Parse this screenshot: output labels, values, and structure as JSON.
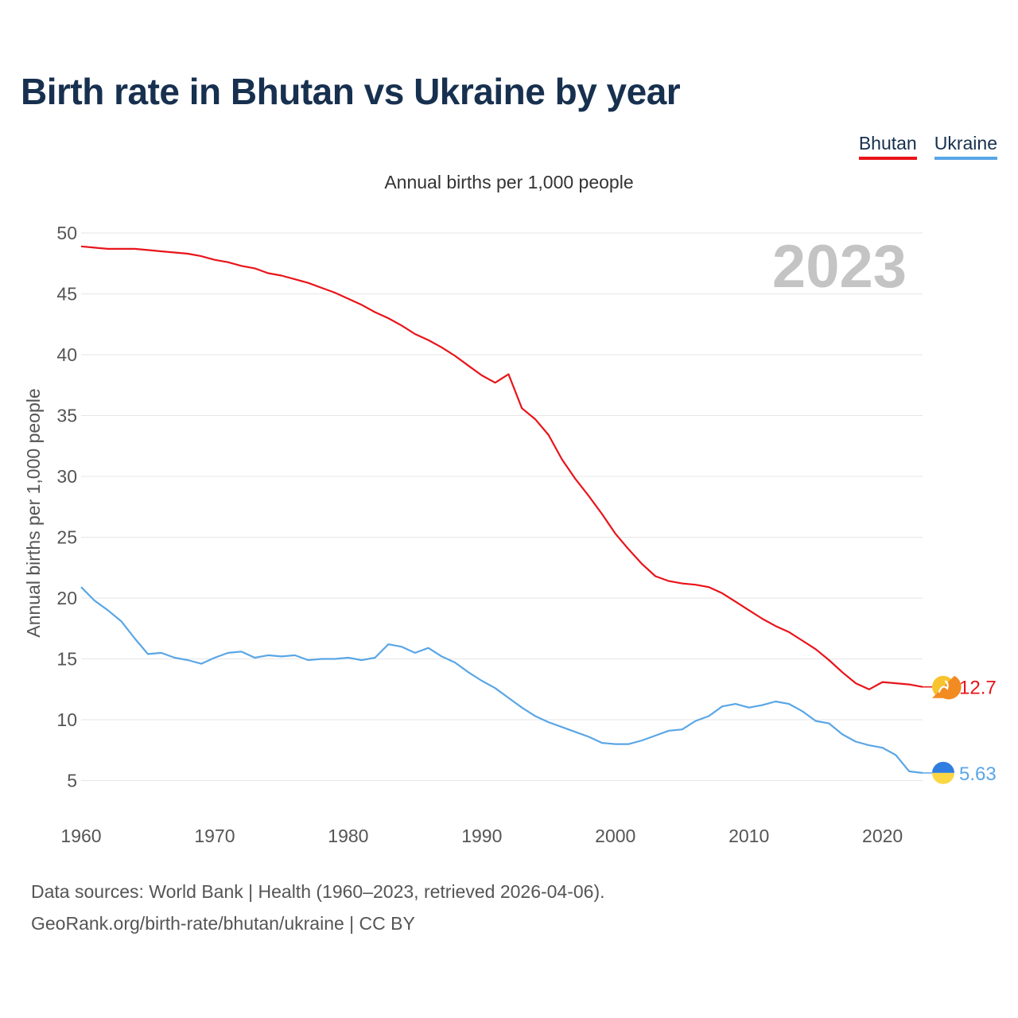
{
  "title": "Birth rate in Bhutan vs Ukraine by year",
  "legend": [
    {
      "label": "Bhutan",
      "color": "#e8141a"
    },
    {
      "label": "Ukraine",
      "color": "#5aa6e6"
    }
  ],
  "subtitle": "Annual births per 1,000 people",
  "year_label": "2023",
  "source": {
    "line1": "Data sources: World Bank | Health (1960–2023, retrieved 2026-04-06).",
    "line2": "GeoRank.org/birth-rate/bhutan/ukraine | CC BY"
  },
  "chart_data": {
    "type": "line",
    "title": "Birth rate in Bhutan vs Ukraine by year",
    "xlabel": "",
    "ylabel": "Annual births per 1,000 people",
    "xlim": [
      1960,
      2023
    ],
    "ylim": [
      0,
      50
    ],
    "xticks": [
      1960,
      1970,
      1980,
      1990,
      2000,
      2010,
      2020
    ],
    "yticks": [
      5,
      10,
      15,
      20,
      25,
      30,
      35,
      40,
      45,
      50
    ],
    "grid": true,
    "legend_position": "top-right",
    "x": [
      1960,
      1961,
      1962,
      1963,
      1964,
      1965,
      1966,
      1967,
      1968,
      1969,
      1970,
      1971,
      1972,
      1973,
      1974,
      1975,
      1976,
      1977,
      1978,
      1979,
      1980,
      1981,
      1982,
      1983,
      1984,
      1985,
      1986,
      1987,
      1988,
      1989,
      1990,
      1991,
      1992,
      1993,
      1994,
      1995,
      1996,
      1997,
      1998,
      1999,
      2000,
      2001,
      2002,
      2003,
      2004,
      2005,
      2006,
      2007,
      2008,
      2009,
      2010,
      2011,
      2012,
      2013,
      2014,
      2015,
      2016,
      2017,
      2018,
      2019,
      2020,
      2021,
      2022,
      2023
    ],
    "series": [
      {
        "name": "Bhutan",
        "color": "#e8141a",
        "end_label": "12.7",
        "values": [
          48.9,
          48.8,
          48.7,
          48.7,
          48.7,
          48.6,
          48.5,
          48.4,
          48.3,
          48.1,
          47.8,
          47.6,
          47.3,
          47.1,
          46.7,
          46.5,
          46.2,
          45.9,
          45.5,
          45.1,
          44.6,
          44.1,
          43.5,
          43.0,
          42.4,
          41.7,
          41.2,
          40.6,
          39.9,
          39.1,
          38.3,
          37.7,
          38.4,
          35.6,
          34.7,
          33.4,
          31.4,
          29.8,
          28.4,
          26.9,
          25.3,
          24.0,
          22.8,
          21.8,
          21.4,
          21.2,
          21.1,
          20.9,
          20.4,
          19.7,
          19.0,
          18.3,
          17.7,
          17.2,
          16.5,
          15.8,
          14.9,
          13.9,
          13.0,
          12.5,
          13.1,
          13.0,
          12.9,
          12.7
        ]
      },
      {
        "name": "Ukraine",
        "color": "#5aa6e6",
        "end_label": "5.63",
        "values": [
          20.9,
          19.8,
          19.0,
          18.1,
          16.7,
          15.4,
          15.5,
          15.1,
          14.9,
          14.6,
          15.1,
          15.5,
          15.6,
          15.1,
          15.3,
          15.2,
          15.3,
          14.9,
          15.0,
          15.0,
          15.1,
          14.9,
          15.1,
          16.2,
          16.0,
          15.5,
          15.9,
          15.2,
          14.7,
          13.9,
          13.2,
          12.6,
          11.8,
          11.0,
          10.3,
          9.8,
          9.4,
          9.0,
          8.6,
          8.1,
          8.0,
          8.0,
          8.3,
          8.7,
          9.1,
          9.2,
          9.9,
          10.3,
          11.1,
          11.3,
          11.0,
          11.2,
          11.5,
          11.3,
          10.7,
          9.9,
          9.7,
          8.8,
          8.2,
          7.9,
          7.7,
          7.1,
          5.76,
          5.63
        ]
      }
    ]
  }
}
